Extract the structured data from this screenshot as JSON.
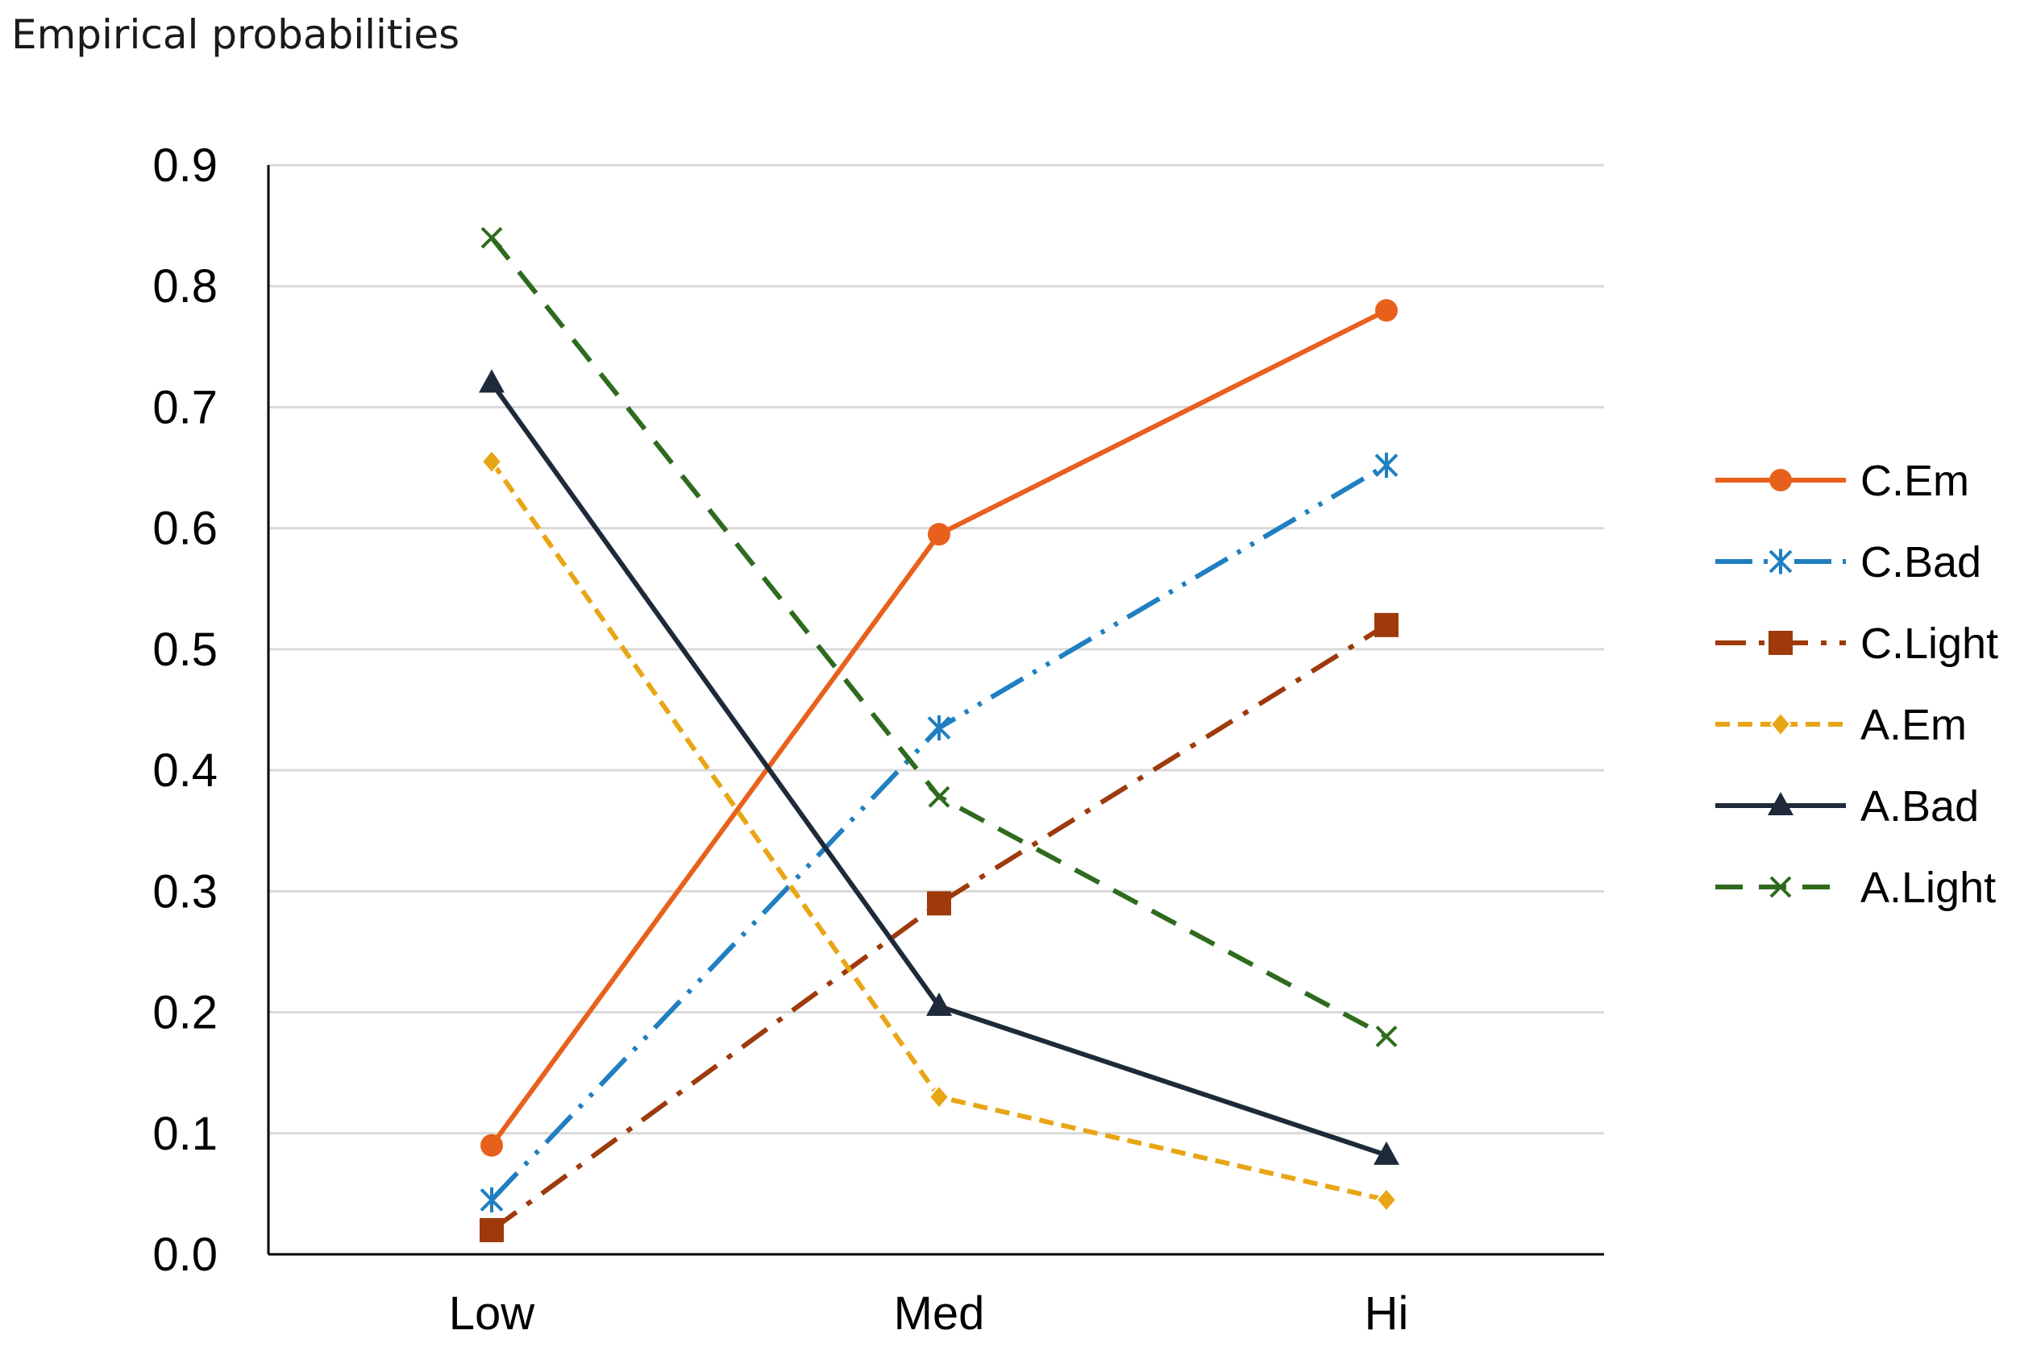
{
  "chart_data": {
    "type": "line",
    "title": "Empirical probabilities",
    "xlabel": "",
    "ylabel": "",
    "categories": [
      "Low",
      "Med",
      "Hi"
    ],
    "ylim": [
      0,
      0.9
    ],
    "yticks": [
      "0.0",
      "0.1",
      "0.2",
      "0.3",
      "0.4",
      "0.5",
      "0.6",
      "0.7",
      "0.8",
      "0.9"
    ],
    "grid": "horizontal",
    "legend_position": "right",
    "series": [
      {
        "name": "C.Em",
        "values": [
          0.09,
          0.595,
          0.78
        ],
        "color": "#E8611C",
        "line": "solid",
        "marker": "circle"
      },
      {
        "name": "C.Bad",
        "values": [
          0.045,
          0.435,
          0.652
        ],
        "color": "#1F7FC1",
        "line": "dash-dot-dot",
        "marker": "asterisk"
      },
      {
        "name": "C.Light",
        "values": [
          0.02,
          0.29,
          0.52
        ],
        "color": "#9E3A0C",
        "line": "dash-dot",
        "marker": "square"
      },
      {
        "name": "A.Em",
        "values": [
          0.655,
          0.13,
          0.045
        ],
        "color": "#E8A616",
        "line": "short-dash",
        "marker": "diamond"
      },
      {
        "name": "A.Bad",
        "values": [
          0.72,
          0.205,
          0.082
        ],
        "color": "#1E2A3A",
        "line": "solid",
        "marker": "triangle"
      },
      {
        "name": "A.Light",
        "values": [
          0.84,
          0.378,
          0.18
        ],
        "color": "#2E6B1E",
        "line": "long-dash",
        "marker": "x"
      }
    ]
  }
}
